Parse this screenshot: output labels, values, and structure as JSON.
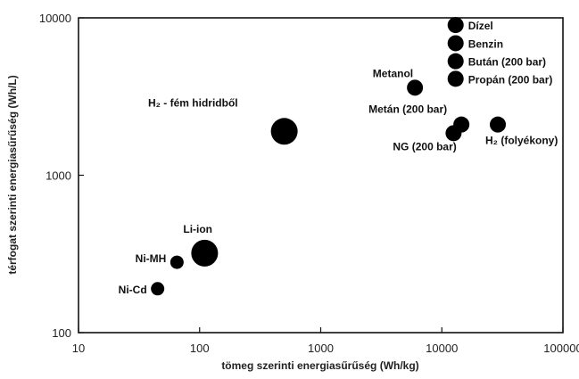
{
  "chart_data": {
    "type": "scatter",
    "title": "",
    "xlabel": "tömeg szerinti energiasűrűség (Wh/kg)",
    "ylabel": "térfogat szerinti energiasűrűség (Wh/L)",
    "xscale": "log",
    "yscale": "log",
    "xlim": [
      10,
      100000
    ],
    "ylim": [
      100,
      10000
    ],
    "xticks": [
      "10",
      "100",
      "1000",
      "10000",
      "100000"
    ],
    "yticks": [
      "100",
      "1000",
      "10000"
    ],
    "grid": false,
    "legend": "none",
    "marker_color": "#000000",
    "points": [
      {
        "label": "Dízel",
        "x": 13000,
        "y": 9000,
        "size": "small"
      },
      {
        "label": "Benzin",
        "x": 13000,
        "y": 6900,
        "size": "small"
      },
      {
        "label": "Bután (200 bar)",
        "x": 13000,
        "y": 5300,
        "size": "small"
      },
      {
        "label": "Propán (200 bar)",
        "x": 13000,
        "y": 4100,
        "size": "small"
      },
      {
        "label": "Metanol",
        "x": 6000,
        "y": 3600,
        "size": "small"
      },
      {
        "label": "Metán (200 bar)",
        "x": 14500,
        "y": 2100,
        "size": "small"
      },
      {
        "label": "NG (200 bar)",
        "x": 12500,
        "y": 1850,
        "size": "small"
      },
      {
        "label": "H₂ (folyékony)",
        "x": 29000,
        "y": 2100,
        "size": "small"
      },
      {
        "label": "H₂ - fém hidridből",
        "x": 500,
        "y": 1900,
        "size": "large"
      },
      {
        "label": "Li-ion",
        "x": 110,
        "y": 320,
        "size": "large"
      },
      {
        "label": "Ni-MH",
        "x": 65,
        "y": 280,
        "size": "tiny"
      },
      {
        "label": "Ni-Cd",
        "x": 45,
        "y": 190,
        "size": "tiny"
      }
    ]
  }
}
